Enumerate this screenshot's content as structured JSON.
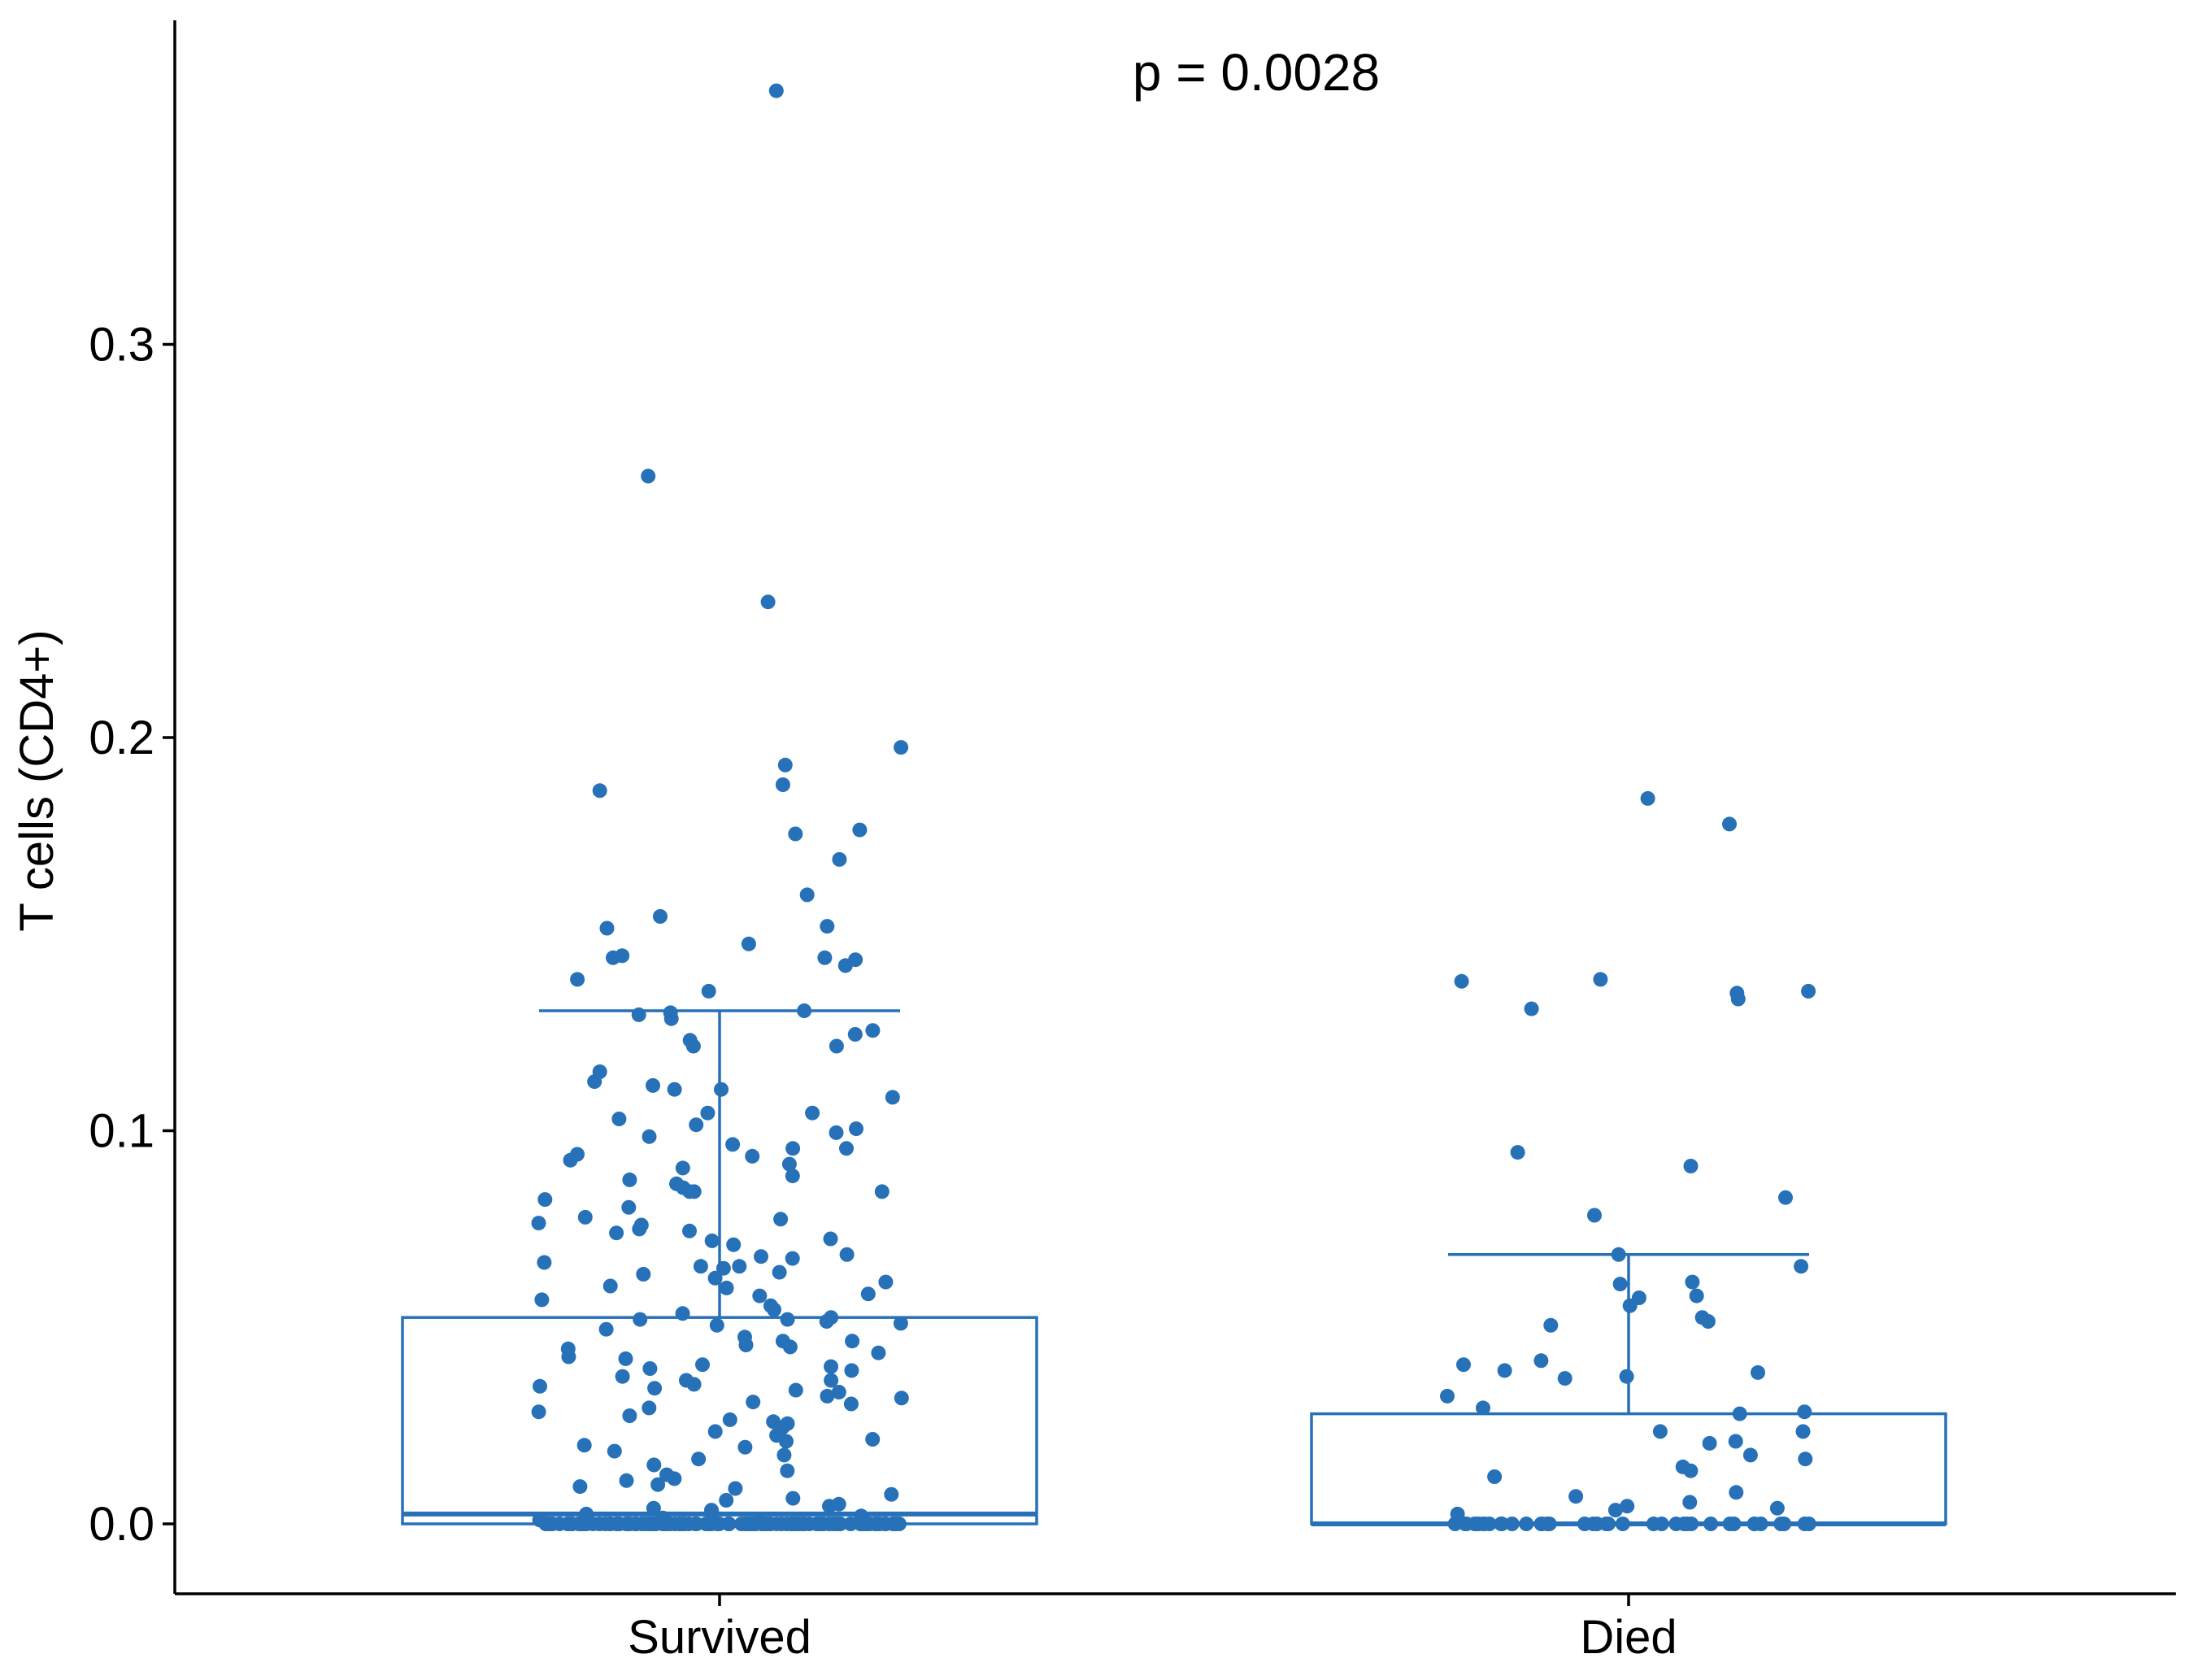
{
  "chart_data": {
    "type": "box",
    "ylabel": "T cells (CD4+)",
    "xlabel": "",
    "ylim": [
      -0.017,
      0.38
    ],
    "yticks": [
      0.0,
      0.1,
      0.2,
      0.3
    ],
    "ytick_labels": [
      "0.0",
      "0.1",
      "0.2",
      "0.3"
    ],
    "categories": [
      "Survived",
      "Died"
    ],
    "annotation": "p = 0.0028",
    "grid": false,
    "legend": "none",
    "colors": {
      "series": "#2771B8",
      "axis": "#000000",
      "background": "#ffffff"
    },
    "boxes": [
      {
        "category": "Survived",
        "q1": 0.0,
        "median": 0.0025,
        "q3": 0.0525,
        "whisker_low": 0.0,
        "whisker_high": 0.1305
      },
      {
        "category": "Died",
        "q1": 0.0,
        "median": 0.0,
        "q3": 0.028,
        "whisker_low": 0.0,
        "whisker_high": 0.0685
      }
    ],
    "points": [
      {
        "category": "Survived",
        "values": [
          0.3645,
          0.2665,
          0.2345,
          0.1975,
          0.193,
          0.188,
          0.1865,
          0.1765,
          0.1755,
          0.169,
          0.16,
          0.1545,
          0.152,
          0.1515,
          0.1475,
          0.1445,
          0.144,
          0.144,
          0.1435,
          0.142,
          0.1385,
          0.1355,
          0.1305,
          0.13,
          0.1295,
          0.1285,
          0.1255,
          0.1245,
          0.123,
          0.1215,
          0.1215,
          0.115,
          0.1125,
          0.1115,
          0.1105,
          0.1105,
          0.1085,
          0.1045,
          0.1045,
          0.103,
          0.1015,
          0.1005,
          0.0995,
          0.0985,
          0.0965,
          0.0955,
          0.0955,
          0.094,
          0.0935,
          0.0925,
          0.0915,
          0.0905,
          0.0885,
          0.0875,
          0.0865,
          0.0855,
          0.0845,
          0.0845,
          0.0845,
          0.0825,
          0.0805,
          0.078,
          0.0775,
          0.0765,
          0.076,
          0.075,
          0.0745,
          0.074,
          0.0725,
          0.072,
          0.071,
          0.0685,
          0.068,
          0.0675,
          0.0665,
          0.0655,
          0.0655,
          0.065,
          0.064,
          0.0635,
          0.0625,
          0.0615,
          0.0605,
          0.06,
          0.0585,
          0.058,
          0.057,
          0.0555,
          0.0545,
          0.0535,
          0.0525,
          0.052,
          0.052,
          0.0515,
          0.051,
          0.0505,
          0.0495,
          0.0475,
          0.0465,
          0.0465,
          0.0455,
          0.045,
          0.0445,
          0.0435,
          0.0425,
          0.042,
          0.0405,
          0.04,
          0.0395,
          0.039,
          0.0375,
          0.0365,
          0.0365,
          0.0355,
          0.035,
          0.0345,
          0.034,
          0.0335,
          0.0325,
          0.032,
          0.031,
          0.0305,
          0.0295,
          0.0285,
          0.0275,
          0.0265,
          0.026,
          0.0255,
          0.0245,
          0.0235,
          0.0225,
          0.0215,
          0.021,
          0.02,
          0.0195,
          0.0185,
          0.0175,
          0.0165,
          0.015,
          0.0135,
          0.0125,
          0.0115,
          0.011,
          0.01,
          0.0095,
          0.009,
          0.0075,
          0.0065,
          0.006,
          0.005,
          0.0045,
          0.004,
          0.0035,
          0.003,
          0.0025,
          0.002,
          0.0015,
          0.001,
          0.0005,
          0.0,
          0.0,
          0.0,
          0.0,
          0.0,
          0.0,
          0.0,
          0.0,
          0.0,
          0.0,
          0.0,
          0.0,
          0.0,
          0.0,
          0.0,
          0.0,
          0.0,
          0.0,
          0.0,
          0.0,
          0.0,
          0.0,
          0.0,
          0.0,
          0.0,
          0.0,
          0.0,
          0.0,
          0.0,
          0.0,
          0.0,
          0.0,
          0.0,
          0.0,
          0.0,
          0.0,
          0.0,
          0.0,
          0.0,
          0.0,
          0.0,
          0.0,
          0.0,
          0.0,
          0.0,
          0.0,
          0.0,
          0.0,
          0.0,
          0.0,
          0.0,
          0.0,
          0.0,
          0.0,
          0.0,
          0.0,
          0.0,
          0.0,
          0.0,
          0.0,
          0.0,
          0.0,
          0.0,
          0.0,
          0.0,
          0.0,
          0.0,
          0.0,
          0.0,
          0.0,
          0.0,
          0.0,
          0.0,
          0.0,
          0.0,
          0.0,
          0.0,
          0.0,
          0.0,
          0.0,
          0.0,
          0.0,
          0.0,
          0.0,
          0.0,
          0.0,
          0.0,
          0.0,
          0.0,
          0.0,
          0.0,
          0.0,
          0.0,
          0.0,
          0.0,
          0.0,
          0.0,
          0.0,
          0.0,
          0.0,
          0.0,
          0.0,
          0.0,
          0.0,
          0.0,
          0.0,
          0.0,
          0.0,
          0.0,
          0.0,
          0.0,
          0.0,
          0.0,
          0.0,
          0.0,
          0.0,
          0.0,
          0.0,
          0.0,
          0.0,
          0.0,
          0.0,
          0.0,
          0.0,
          0.0,
          0.0,
          0.0,
          0.0
        ]
      },
      {
        "category": "Died",
        "values": [
          0.1845,
          0.178,
          0.1385,
          0.138,
          0.1355,
          0.135,
          0.1335,
          0.131,
          0.0945,
          0.091,
          0.083,
          0.0785,
          0.0685,
          0.0655,
          0.0615,
          0.061,
          0.058,
          0.0575,
          0.0555,
          0.0525,
          0.0515,
          0.0505,
          0.0415,
          0.0405,
          0.039,
          0.0385,
          0.0375,
          0.037,
          0.0325,
          0.0295,
          0.0285,
          0.028,
          0.0235,
          0.0235,
          0.021,
          0.0205,
          0.0175,
          0.0165,
          0.0145,
          0.0135,
          0.012,
          0.008,
          0.007,
          0.0055,
          0.0045,
          0.004,
          0.0035,
          0.0025,
          0.0,
          0.0,
          0.0,
          0.0,
          0.0,
          0.0,
          0.0,
          0.0,
          0.0,
          0.0,
          0.0,
          0.0,
          0.0,
          0.0,
          0.0,
          0.0,
          0.0,
          0.0,
          0.0,
          0.0,
          0.0,
          0.0,
          0.0,
          0.0,
          0.0,
          0.0,
          0.0,
          0.0,
          0.0,
          0.0,
          0.0,
          0.0,
          0.0,
          0.0,
          0.0,
          0.0,
          0.0,
          0.0,
          0.0,
          0.0
        ]
      }
    ]
  }
}
